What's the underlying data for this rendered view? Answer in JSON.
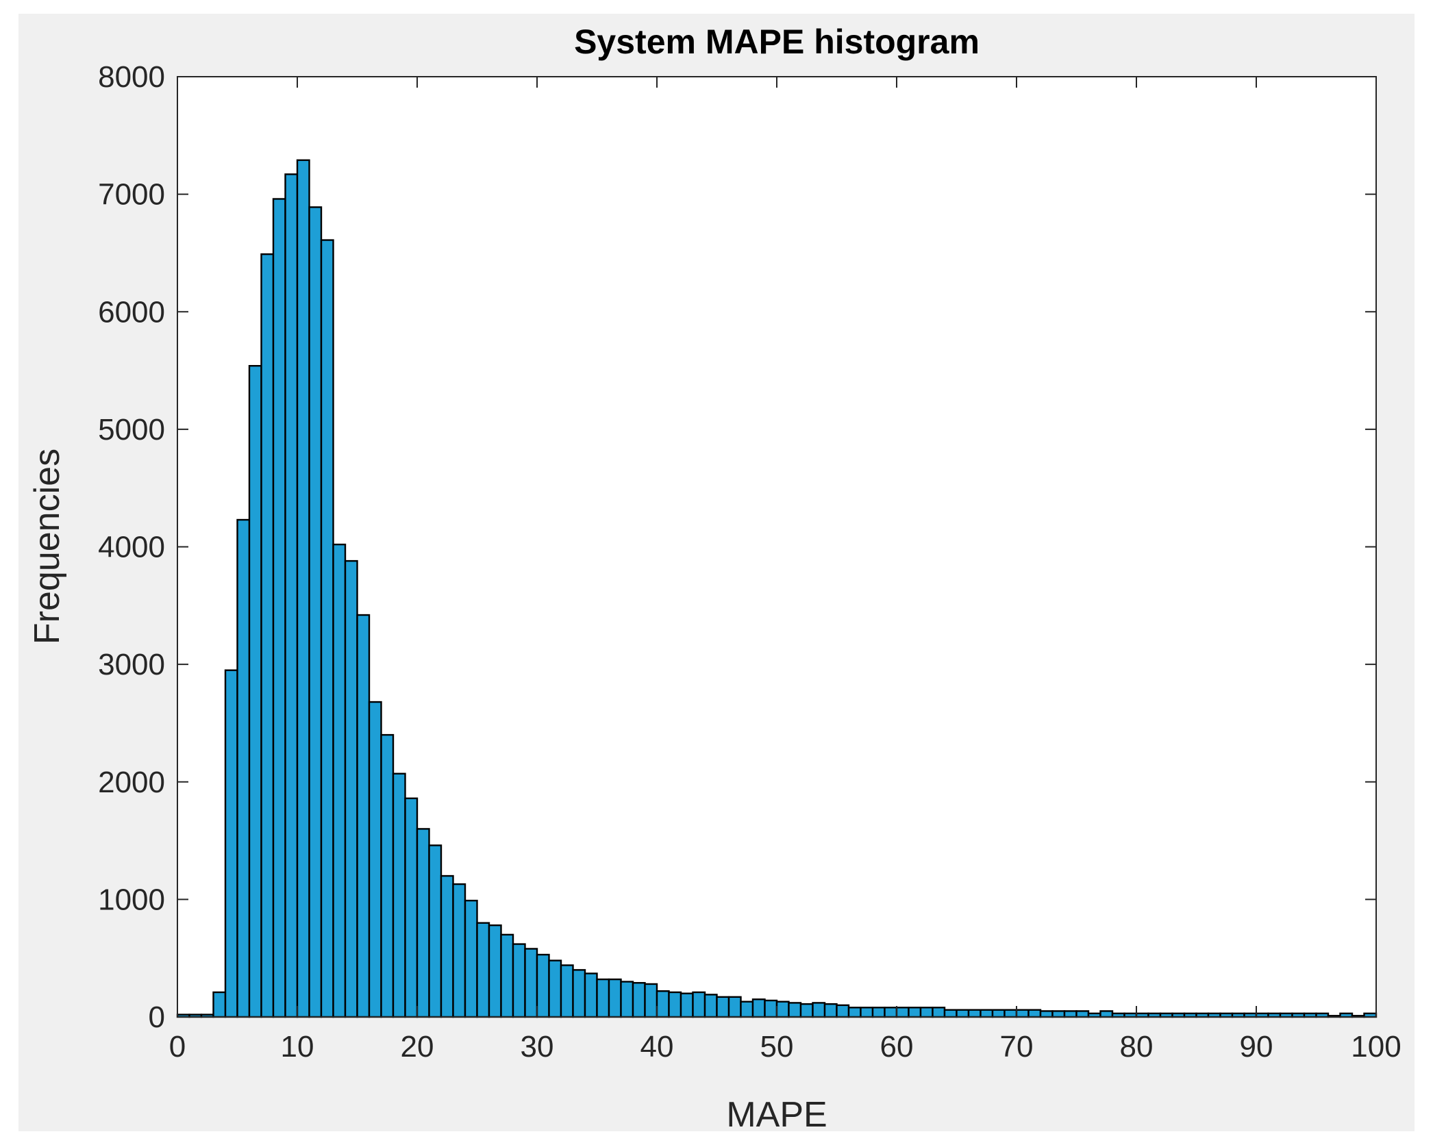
{
  "chart_data": {
    "type": "bar",
    "title": "System MAPE histogram",
    "xlabel": "MAPE",
    "ylabel": "Frequencies",
    "xlim": [
      0,
      100
    ],
    "ylim": [
      0,
      8000
    ],
    "xticks": [
      0,
      10,
      20,
      30,
      40,
      50,
      60,
      70,
      80,
      90,
      100
    ],
    "yticks": [
      0,
      1000,
      2000,
      3000,
      4000,
      5000,
      6000,
      7000,
      8000
    ],
    "bin_width": 1,
    "bin_start": 0,
    "values": [
      20,
      20,
      20,
      210,
      2950,
      4230,
      5540,
      6490,
      6960,
      7170,
      7290,
      6890,
      6610,
      4020,
      3880,
      3420,
      2680,
      2400,
      2070,
      1860,
      1600,
      1460,
      1200,
      1130,
      990,
      800,
      780,
      700,
      620,
      580,
      530,
      480,
      440,
      400,
      370,
      320,
      320,
      300,
      290,
      280,
      220,
      210,
      200,
      210,
      190,
      170,
      170,
      130,
      150,
      140,
      130,
      120,
      110,
      120,
      110,
      100,
      80,
      80,
      80,
      80,
      80,
      80,
      80,
      80,
      60,
      60,
      60,
      60,
      60,
      60,
      60,
      60,
      50,
      50,
      50,
      50,
      30,
      50,
      30,
      30,
      30,
      30,
      30,
      30,
      30,
      30,
      30,
      30,
      30,
      30,
      30,
      30,
      30,
      30,
      30,
      30,
      10,
      30,
      10,
      30
    ],
    "bar_color": "#1e9fd6",
    "edge_color": "#000000",
    "grid": false,
    "figure_background": "#f0f0f0",
    "axes_background": "#ffffff"
  }
}
